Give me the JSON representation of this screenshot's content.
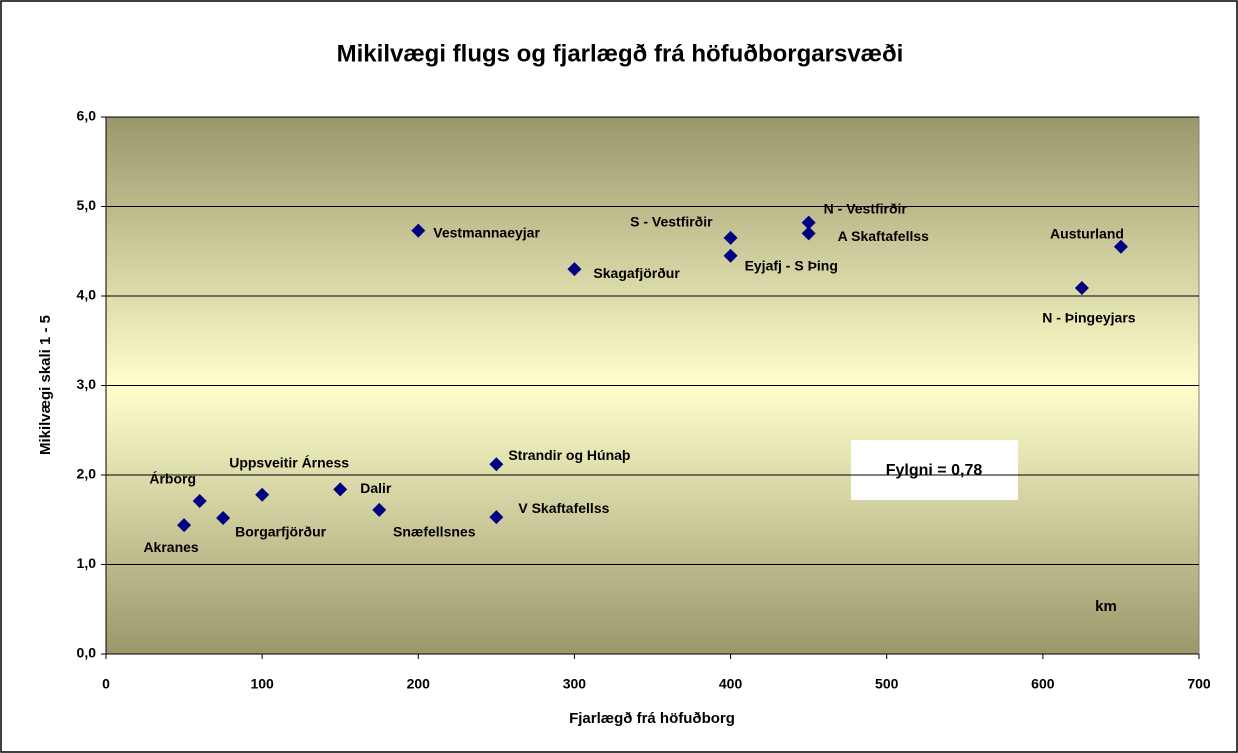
{
  "chart_data": {
    "type": "scatter",
    "title": "Mikilvægi flugs og fjarlægð frá höfuðborgarsvæði",
    "xlabel": "Fjarlægð frá höfuðborg",
    "ylabel": "Mikilvægi skali 1 - 5",
    "labels": [
      "Akranes",
      "Árborg",
      "Borgarfjörður",
      "Uppsveitir Árness",
      "Dalir",
      "Snæfellsnes",
      "Vestmannaeyjar",
      "Strandir og Húnaþ",
      "V Skaftafellss",
      "Skagafjörður",
      "S - Vestfirðir",
      "Eyjafj - S Þing",
      "N - Vestfirðir",
      "A Skaftafellss",
      "N - Þingeyjars",
      "Austurland"
    ],
    "x": [
      50,
      60,
      75,
      100,
      150,
      175,
      200,
      250,
      250,
      300,
      400,
      400,
      450,
      450,
      625,
      650
    ],
    "values": [
      1.44,
      1.71,
      1.52,
      1.78,
      1.84,
      1.61,
      4.73,
      2.12,
      1.53,
      4.3,
      4.65,
      4.45,
      4.82,
      4.7,
      4.09,
      4.55
    ],
    "color": "#000080",
    "xlim": [
      0,
      700
    ],
    "xticks": [
      0,
      100,
      200,
      300,
      400,
      500,
      600,
      700
    ],
    "ylim": [
      0,
      6
    ],
    "yticks": [
      {
        "value": 0,
        "label": "0,0"
      },
      {
        "value": 1,
        "label": "1,0"
      },
      {
        "value": 2,
        "label": "2,0"
      },
      {
        "value": 3,
        "label": "3,0"
      },
      {
        "value": 4,
        "label": "4,0"
      },
      {
        "value": 5,
        "label": "5,0"
      },
      {
        "value": 6,
        "label": "6,0"
      }
    ],
    "grid": true,
    "annotations": [
      "Fylgni = 0,78",
      "km"
    ]
  }
}
